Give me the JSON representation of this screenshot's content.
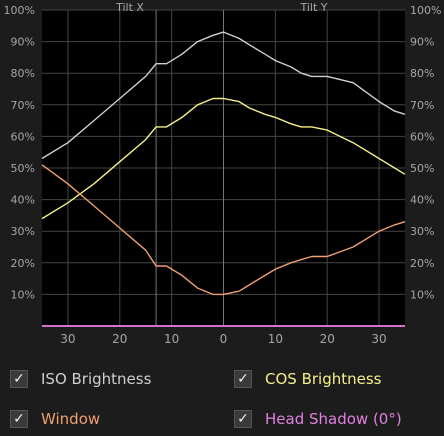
{
  "colors": {
    "background": "#1c1c1c",
    "plot_bg": "#000000",
    "grid": "#444444",
    "text": "#a6a6a6",
    "tilt_axis": "#777777",
    "baseline": "#c060c0"
  },
  "chart_data": {
    "type": "line",
    "title": "",
    "section_labels": [
      "Tilt X",
      "Tilt Y"
    ],
    "x_tick_labels": [
      "30",
      "20",
      "10",
      "0",
      "10",
      "20",
      "30"
    ],
    "y_tick_labels": [
      "10%",
      "20%",
      "30%",
      "40%",
      "50%",
      "60%",
      "70%",
      "80%",
      "90%",
      "100%"
    ],
    "xlabel": "",
    "ylabel": "",
    "xlim": [
      -35,
      35
    ],
    "ylim": [
      0,
      100
    ],
    "grid": true,
    "tilt_marker_x": -13,
    "series": [
      {
        "name": "ISO Brightness",
        "color": "#d0d0d0",
        "x": [
          -35,
          -30,
          -25,
          -20,
          -15,
          -13,
          -11,
          -8,
          -5,
          -2,
          0,
          3,
          5,
          8,
          10,
          13,
          15,
          17,
          20,
          25,
          30,
          33,
          35
        ],
        "y": [
          53,
          58,
          65,
          72,
          79,
          83,
          83,
          86,
          90,
          92,
          93,
          91,
          89,
          86,
          84,
          82,
          80,
          79,
          79,
          77,
          71,
          68,
          67
        ]
      },
      {
        "name": "COS Brightness",
        "color": "#f5f08a",
        "x": [
          -35,
          -30,
          -25,
          -20,
          -15,
          -13,
          -11,
          -8,
          -5,
          -2,
          0,
          3,
          5,
          8,
          10,
          13,
          15,
          17,
          20,
          25,
          30,
          33,
          35
        ],
        "y": [
          34,
          39,
          45,
          52,
          59,
          63,
          63,
          66,
          70,
          72,
          72,
          71,
          69,
          67,
          66,
          64,
          63,
          63,
          62,
          58,
          53,
          50,
          48
        ]
      },
      {
        "name": "Window",
        "color": "#f0a070",
        "x": [
          -35,
          -30,
          -25,
          -20,
          -15,
          -13,
          -11,
          -8,
          -5,
          -2,
          0,
          3,
          5,
          8,
          10,
          13,
          15,
          17,
          20,
          25,
          30,
          33,
          35
        ],
        "y": [
          51,
          45,
          38,
          31,
          24,
          19,
          19,
          16,
          12,
          10,
          10,
          11,
          13,
          16,
          18,
          20,
          21,
          22,
          22,
          25,
          30,
          32,
          33
        ]
      },
      {
        "name": "Head Shadow (0°)",
        "color": "#d070d0",
        "x": [
          -35,
          35
        ],
        "y": [
          0,
          0
        ]
      }
    ]
  },
  "legend": {
    "items": [
      {
        "label": "ISO Brightness",
        "checked": true,
        "glyph": "✓"
      },
      {
        "label": "COS Brightness",
        "checked": true,
        "glyph": "✓"
      },
      {
        "label": "Window",
        "checked": true,
        "glyph": "✓"
      },
      {
        "label": "Head Shadow (0°)",
        "checked": true,
        "glyph": "✓"
      }
    ]
  }
}
